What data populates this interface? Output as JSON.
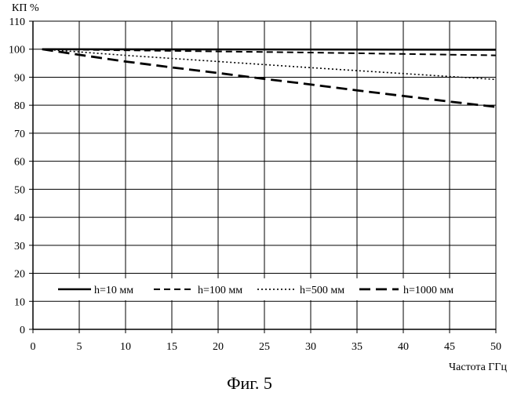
{
  "figure": {
    "caption": "Фиг. 5"
  },
  "chart_data": {
    "type": "line",
    "title": "",
    "xlabel": "Частота ГГц",
    "ylabel": "КП %",
    "xlim": [
      0,
      50
    ],
    "ylim": [
      0,
      110
    ],
    "x_ticks": [
      0,
      5,
      10,
      15,
      20,
      25,
      30,
      35,
      40,
      45,
      50
    ],
    "y_ticks": [
      0,
      10,
      20,
      30,
      40,
      50,
      60,
      70,
      80,
      90,
      100,
      110
    ],
    "grid": true,
    "legend_position": "bottom-inside",
    "series": [
      {
        "name": "h=10 мм",
        "style": "solid",
        "x": [
          1,
          50
        ],
        "y": [
          100,
          99.8
        ]
      },
      {
        "name": "h=100 мм",
        "style": "dashed",
        "x": [
          1,
          10,
          20,
          30,
          40,
          50
        ],
        "y": [
          100,
          99.6,
          99.2,
          98.8,
          98.3,
          97.8
        ]
      },
      {
        "name": "h=500 мм",
        "style": "dotted",
        "x": [
          1,
          10,
          20,
          30,
          40,
          50
        ],
        "y": [
          100,
          97.8,
          95.6,
          93.4,
          91.3,
          89.2
        ]
      },
      {
        "name": "h=1000 мм",
        "style": "long-dash",
        "x": [
          1,
          5,
          10,
          15,
          20,
          25,
          30,
          35,
          40,
          45,
          50
        ],
        "y": [
          100,
          98,
          95.6,
          93.5,
          91.5,
          89.4,
          87.4,
          85.3,
          83.3,
          81.3,
          79.4
        ]
      }
    ]
  }
}
